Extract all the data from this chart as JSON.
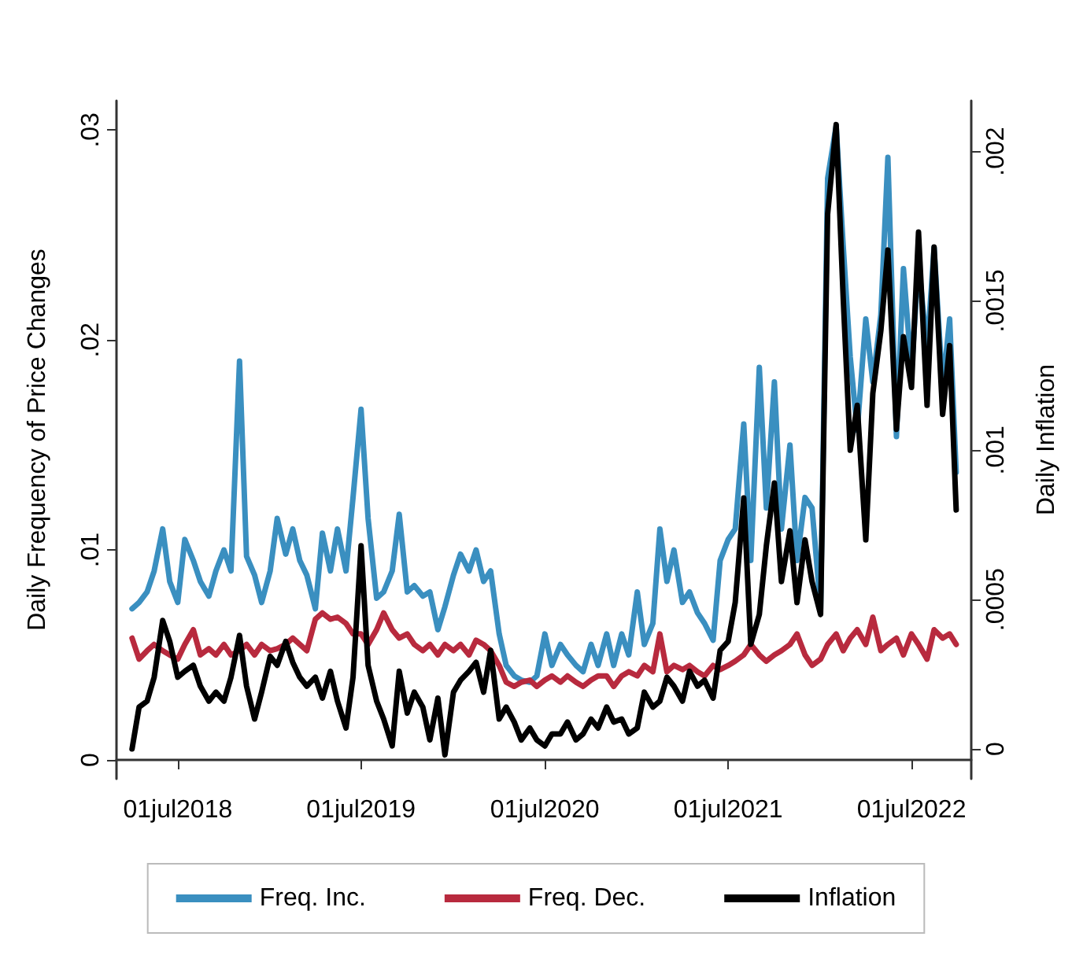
{
  "chart_data": {
    "type": "line",
    "marker": "none",
    "legend": "bottom",
    "ylabel": "Daily Frequency of Price Changes",
    "y2label": "Daily Inflation",
    "x": [
      "2018-04-01",
      "2018-04-15",
      "2018-05-01",
      "2018-05-15",
      "2018-06-01",
      "2018-06-15",
      "2018-07-01",
      "2018-07-15",
      "2018-08-01",
      "2018-08-15",
      "2018-09-01",
      "2018-09-15",
      "2018-10-01",
      "2018-10-15",
      "2018-11-01",
      "2018-11-15",
      "2018-12-01",
      "2018-12-15",
      "2019-01-01",
      "2019-01-15",
      "2019-02-01",
      "2019-02-15",
      "2019-03-01",
      "2019-03-15",
      "2019-04-01",
      "2019-04-15",
      "2019-05-01",
      "2019-05-15",
      "2019-06-01",
      "2019-06-15",
      "2019-07-01",
      "2019-07-15",
      "2019-08-01",
      "2019-08-15",
      "2019-09-01",
      "2019-09-15",
      "2019-10-01",
      "2019-10-15",
      "2019-11-01",
      "2019-11-15",
      "2019-12-01",
      "2019-12-15",
      "2020-01-01",
      "2020-01-15",
      "2020-02-01",
      "2020-02-15",
      "2020-03-01",
      "2020-03-15",
      "2020-04-01",
      "2020-04-15",
      "2020-05-01",
      "2020-05-15",
      "2020-06-01",
      "2020-06-15",
      "2020-07-01",
      "2020-07-15",
      "2020-08-01",
      "2020-08-15",
      "2020-09-01",
      "2020-09-15",
      "2020-10-01",
      "2020-10-15",
      "2020-11-01",
      "2020-11-15",
      "2020-12-01",
      "2020-12-15",
      "2021-01-01",
      "2021-01-15",
      "2021-02-01",
      "2021-02-15",
      "2021-03-01",
      "2021-03-15",
      "2021-04-01",
      "2021-04-15",
      "2021-05-01",
      "2021-05-15",
      "2021-06-01",
      "2021-06-15",
      "2021-07-01",
      "2021-07-15",
      "2021-08-01",
      "2021-08-15",
      "2021-09-01",
      "2021-09-15",
      "2021-10-01",
      "2021-10-15",
      "2021-11-01",
      "2021-11-15",
      "2021-12-01",
      "2021-12-15",
      "2022-01-01",
      "2022-01-15",
      "2022-02-01",
      "2022-02-15",
      "2022-03-01",
      "2022-03-15",
      "2022-04-01",
      "2022-04-15",
      "2022-05-01",
      "2022-05-15",
      "2022-06-01",
      "2022-06-15",
      "2022-07-01",
      "2022-07-15",
      "2022-08-01",
      "2022-08-15",
      "2022-09-01",
      "2022-09-15",
      "2022-09-28"
    ],
    "xlim": [
      "2018-03-01",
      "2022-10-28"
    ],
    "xticks": [
      {
        "value": "2018-07-01",
        "label": "01jul2018"
      },
      {
        "value": "2019-07-01",
        "label": "01jul2019"
      },
      {
        "value": "2020-07-01",
        "label": "01jul2020"
      },
      {
        "value": "2021-07-01",
        "label": "01jul2021"
      },
      {
        "value": "2022-07-01",
        "label": "01jul2022"
      }
    ],
    "ylim": [
      -0.0009,
      0.0314
    ],
    "yticks": [
      0,
      {
        "value": 0.01,
        "label": ".01"
      },
      {
        "value": 0.02,
        "label": ".02"
      },
      {
        "value": 0.03,
        "label": ".03"
      }
    ],
    "y2lim": [
      -0.0001,
      0.00217
    ],
    "y2ticks": [
      0,
      {
        "value": 0.0005,
        "label": ".0005"
      },
      {
        "value": 0.001,
        "label": ".001"
      },
      {
        "value": 0.0015,
        "label": ".0015"
      },
      {
        "value": 0.002,
        "label": ".002"
      }
    ],
    "series": [
      {
        "name": "Freq. Inc.",
        "color": "#3a8fc0",
        "values": [
          0.0072,
          0.0075,
          0.008,
          0.009,
          0.011,
          0.0085,
          0.0075,
          0.0105,
          0.0095,
          0.0085,
          0.0078,
          0.009,
          0.01,
          0.009,
          0.019,
          0.0097,
          0.0088,
          0.0075,
          0.009,
          0.0115,
          0.0098,
          0.011,
          0.0095,
          0.0088,
          0.0072,
          0.0108,
          0.009,
          0.011,
          0.009,
          0.0125,
          0.0167,
          0.0115,
          0.0077,
          0.008,
          0.009,
          0.0117,
          0.008,
          0.0083,
          0.0078,
          0.008,
          0.0062,
          0.0073,
          0.0088,
          0.0098,
          0.009,
          0.01,
          0.0085,
          0.009,
          0.006,
          0.0045,
          0.004,
          0.0038,
          0.0037,
          0.004,
          0.006,
          0.0045,
          0.0055,
          0.005,
          0.0045,
          0.0042,
          0.0055,
          0.0045,
          0.006,
          0.0045,
          0.006,
          0.005,
          0.008,
          0.0055,
          0.0065,
          0.011,
          0.0085,
          0.01,
          0.0075,
          0.008,
          0.007,
          0.0065,
          0.0057,
          0.0095,
          0.0105,
          0.011,
          0.016,
          0.0095,
          0.0187,
          0.012,
          0.018,
          0.011,
          0.015,
          0.0095,
          0.0125,
          0.012,
          0.0072,
          0.0277,
          0.0302,
          0.0245,
          0.0192,
          0.0157,
          0.021,
          0.018,
          0.0212,
          0.0287,
          0.0154,
          0.0234,
          0.0185,
          0.0237,
          0.0195,
          0.0244,
          0.0177,
          0.021,
          0.0137
        ]
      },
      {
        "name": "Freq. Dec.",
        "color": "#b82a3e",
        "values": [
          0.0058,
          0.0048,
          0.0052,
          0.0055,
          0.0052,
          0.005,
          0.0048,
          0.0055,
          0.0062,
          0.005,
          0.0053,
          0.005,
          0.0055,
          0.005,
          0.0052,
          0.0055,
          0.005,
          0.0055,
          0.0052,
          0.0053,
          0.0055,
          0.0058,
          0.0055,
          0.0052,
          0.0067,
          0.007,
          0.0067,
          0.0068,
          0.0065,
          0.006,
          0.006,
          0.0055,
          0.0062,
          0.007,
          0.0062,
          0.0058,
          0.006,
          0.0055,
          0.0052,
          0.0055,
          0.005,
          0.0055,
          0.0052,
          0.0055,
          0.005,
          0.0057,
          0.0055,
          0.0052,
          0.0045,
          0.0037,
          0.0035,
          0.0037,
          0.0038,
          0.0035,
          0.0038,
          0.004,
          0.0037,
          0.004,
          0.0037,
          0.0035,
          0.0038,
          0.004,
          0.004,
          0.0035,
          0.004,
          0.0042,
          0.004,
          0.0045,
          0.0042,
          0.006,
          0.0042,
          0.0045,
          0.0043,
          0.0045,
          0.0042,
          0.004,
          0.0045,
          0.0043,
          0.0045,
          0.0047,
          0.005,
          0.0055,
          0.005,
          0.0047,
          0.005,
          0.0052,
          0.0055,
          0.006,
          0.005,
          0.0045,
          0.0048,
          0.0055,
          0.006,
          0.0052,
          0.0058,
          0.0062,
          0.0055,
          0.0068,
          0.0052,
          0.0055,
          0.0058,
          0.005,
          0.006,
          0.0055,
          0.0048,
          0.0062,
          0.0058,
          0.006,
          0.0055
        ]
      },
      {
        "name": "Inflation",
        "color": "#000000",
        "axis": "y2",
        "values": [
          0,
          0.00014,
          0.00016,
          0.00024,
          0.00043,
          0.00036,
          0.00024,
          0.00026,
          0.00028,
          0.00021,
          0.00016,
          0.00019,
          0.00016,
          0.00024,
          0.00038,
          0.00021,
          0.0001,
          0.00019,
          0.00031,
          0.00028,
          0.00036,
          0.00029,
          0.00024,
          0.00021,
          0.00024,
          0.00017,
          0.00026,
          0.00016,
          7e-05,
          0.00024,
          0.00068,
          0.00028,
          0.00016,
          0.0001,
          1e-05,
          0.00026,
          0.00012,
          0.00019,
          0.00014,
          3e-05,
          0.00017,
          -2e-05,
          0.00019,
          0.00023,
          0.00026,
          0.00029,
          0.00019,
          0.00033,
          0.0001,
          0.00014,
          9e-05,
          3e-05,
          7e-05,
          3e-05,
          1e-05,
          5e-05,
          5e-05,
          9e-05,
          3e-05,
          5e-05,
          0.0001,
          7e-05,
          0.00014,
          9e-05,
          0.0001,
          5e-05,
          7e-05,
          0.00019,
          0.00014,
          0.00016,
          0.00024,
          0.00021,
          0.00016,
          0.00026,
          0.00021,
          0.00023,
          0.00017,
          0.00033,
          0.00036,
          0.00049,
          0.00084,
          0.00035,
          0.00045,
          0.00068,
          0.00089,
          0.00056,
          0.00073,
          0.00049,
          0.0007,
          0.00056,
          0.00045,
          0.00179,
          0.00209,
          0.00151,
          0.001,
          0.00115,
          0.0007,
          0.00119,
          0.0014,
          0.00167,
          0.00107,
          0.00138,
          0.00121,
          0.00173,
          0.00115,
          0.00168,
          0.00112,
          0.00135,
          0.0008
        ]
      }
    ]
  }
}
